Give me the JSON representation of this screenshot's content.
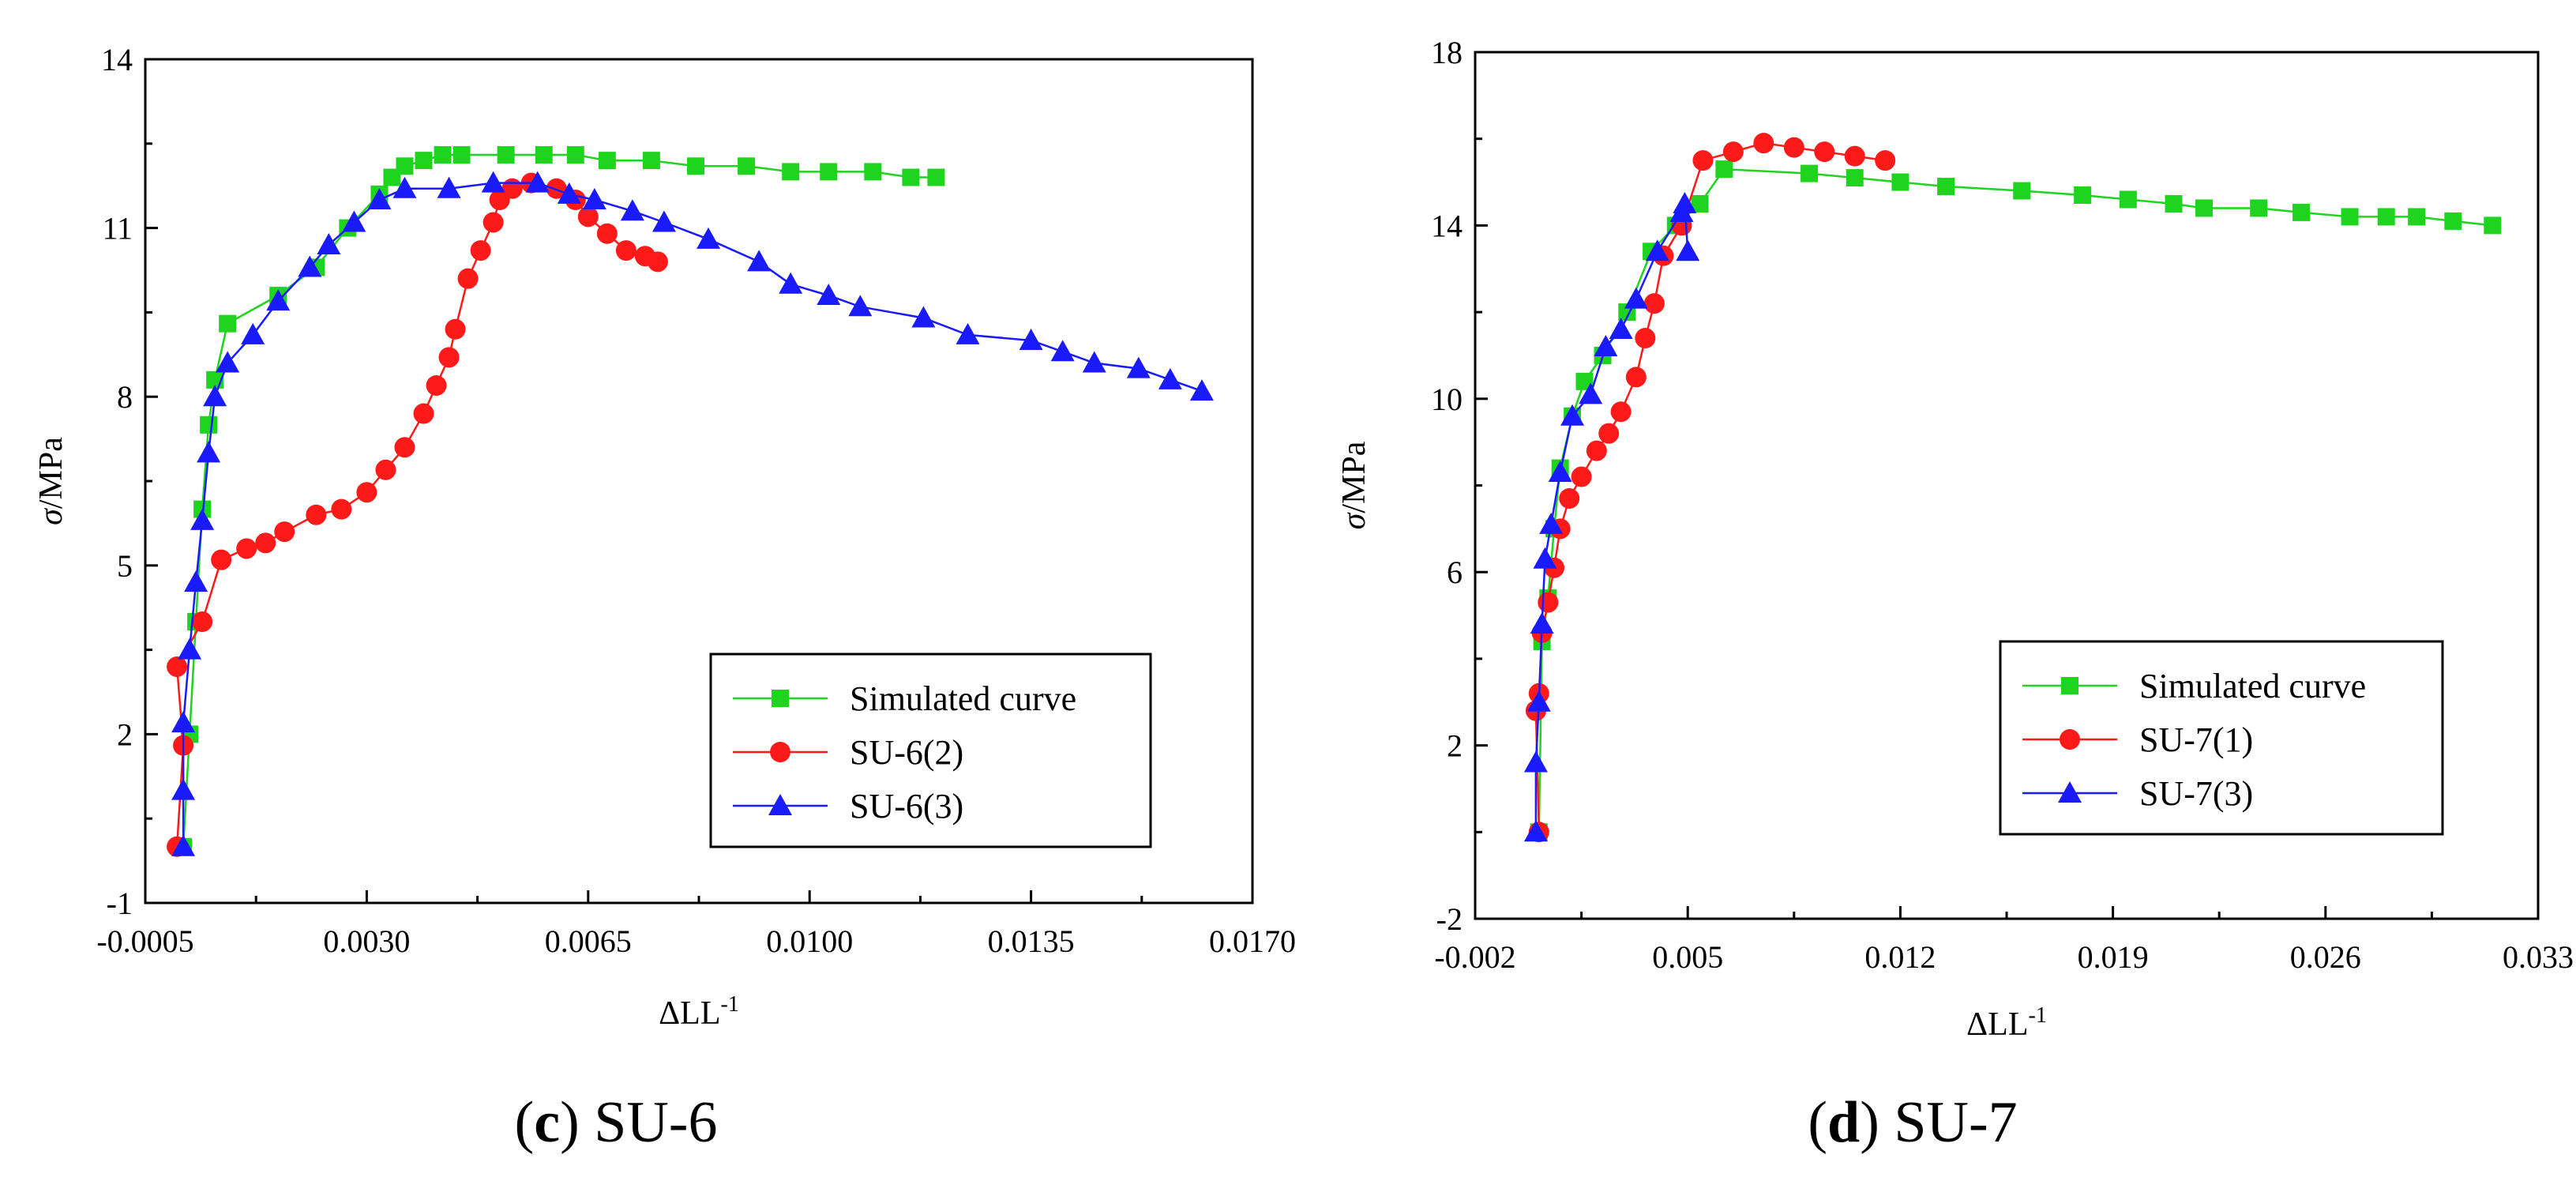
{
  "charts": [
    {
      "type": "line",
      "caption_letter": "c",
      "caption_rest": " SU-6",
      "ylabel_symbol": "σ",
      "ylabel_unit": "/MPa",
      "xlabel_main": "ΔLL",
      "xlabel_sup": "-1",
      "x_range": [
        -0.0005,
        0.017
      ],
      "y_range": [
        -1,
        14
      ],
      "x_ticks": [
        -0.0005,
        0.003,
        0.0065,
        0.01,
        0.0135,
        0.017
      ],
      "x_tick_labels": [
        "-0.0005",
        "0.0030",
        "0.0065",
        "0.0100",
        "0.0135",
        "0.0170"
      ],
      "y_ticks": [
        -1,
        2,
        5,
        8,
        11,
        14
      ],
      "y_tick_labels": [
        "-1",
        "2",
        "5",
        "8",
        "11",
        "14"
      ],
      "legend": [
        "Simulated curve",
        "SU-6(2)",
        "SU-6(3)"
      ],
      "series": [
        {
          "name": "Simulated curve",
          "color": "#1ed41e",
          "marker": "square",
          "x": [
            0.0001,
            0.0002,
            0.0003,
            0.0004,
            0.0005,
            0.0006,
            0.0008,
            0.0016,
            0.0022,
            0.0027,
            0.0032,
            0.0034,
            0.0036,
            0.0039,
            0.0042,
            0.0045,
            0.0052,
            0.0058,
            0.0063,
            0.0068,
            0.0075,
            0.0082,
            0.009,
            0.0097,
            0.0103,
            0.011,
            0.0116,
            0.012
          ],
          "y": [
            0.0,
            2.0,
            4.0,
            6.0,
            7.5,
            8.3,
            9.3,
            9.8,
            10.3,
            11.0,
            11.6,
            11.9,
            12.1,
            12.2,
            12.3,
            12.3,
            12.3,
            12.3,
            12.3,
            12.2,
            12.2,
            12.1,
            12.1,
            12.0,
            12.0,
            12.0,
            11.9,
            11.9
          ]
        },
        {
          "name": "SU-6(2)",
          "color": "#ff1a1a",
          "marker": "circle",
          "x": [
            0.0,
            0.0001,
            0.0,
            0.0004,
            0.0007,
            0.0011,
            0.0014,
            0.0017,
            0.0022,
            0.0026,
            0.003,
            0.0033,
            0.0036,
            0.0039,
            0.0041,
            0.0043,
            0.0044,
            0.0046,
            0.0048,
            0.005,
            0.0051,
            0.0053,
            0.0056,
            0.006,
            0.0063,
            0.0065,
            0.0068,
            0.0071,
            0.0074,
            0.0076
          ],
          "y": [
            0.0,
            1.8,
            3.2,
            4.0,
            5.1,
            5.3,
            5.4,
            5.6,
            5.9,
            6.0,
            6.3,
            6.7,
            7.1,
            7.7,
            8.2,
            8.7,
            9.2,
            10.1,
            10.6,
            11.1,
            11.5,
            11.7,
            11.8,
            11.7,
            11.5,
            11.2,
            10.9,
            10.6,
            10.5,
            10.4
          ],
          "x_override_note": ""
        },
        {
          "name": "SU-6(3)",
          "color": "#1a1aff",
          "marker": "triangle",
          "x": [
            0.0001,
            0.0001,
            0.0001,
            0.0002,
            0.0003,
            0.0004,
            0.0005,
            0.0006,
            0.0008,
            0.0012,
            0.0016,
            0.0021,
            0.0024,
            0.0028,
            0.0032,
            0.0036,
            0.0043,
            0.005,
            0.0057,
            0.0062,
            0.0066,
            0.0072,
            0.0077,
            0.0084,
            0.0092,
            0.0097,
            0.0103,
            0.0108,
            0.0118,
            0.0125,
            0.0135,
            0.014,
            0.0145,
            0.0152,
            0.0157,
            0.0162
          ],
          "y": [
            0.0,
            1.0,
            2.2,
            3.5,
            4.7,
            5.8,
            7.0,
            8.0,
            8.6,
            9.1,
            9.7,
            10.3,
            10.7,
            11.1,
            11.5,
            11.7,
            11.7,
            11.8,
            11.8,
            11.6,
            11.5,
            11.3,
            11.1,
            10.8,
            10.4,
            10.0,
            9.8,
            9.6,
            9.4,
            9.1,
            9.0,
            8.8,
            8.6,
            8.5,
            8.3,
            8.1
          ]
        }
      ]
    },
    {
      "type": "line",
      "caption_letter": "d",
      "caption_rest": " SU-7",
      "ylabel_symbol": "σ",
      "ylabel_unit": "/MPa",
      "xlabel_main": "ΔLL",
      "xlabel_sup": "-1",
      "x_range": [
        -0.002,
        0.033
      ],
      "y_range": [
        -2,
        18
      ],
      "x_ticks": [
        -0.002,
        0.005,
        0.012,
        0.019,
        0.026,
        0.033
      ],
      "x_tick_labels": [
        "-0.002",
        "0.005",
        "0.012",
        "0.019",
        "0.026",
        "0.033"
      ],
      "y_ticks": [
        -2,
        2,
        6,
        10,
        14,
        18
      ],
      "y_tick_labels": [
        "-2",
        "2",
        "6",
        "10",
        "14",
        "18"
      ],
      "legend": [
        "Simulated curve",
        "SU-7(1)",
        "SU-7(3)"
      ],
      "series": [
        {
          "name": "Simulated curve",
          "color": "#1ed41e",
          "marker": "square",
          "x": [
            0.0001,
            0.0002,
            0.0004,
            0.0006,
            0.0008,
            0.0012,
            0.0016,
            0.0022,
            0.003,
            0.0038,
            0.0046,
            0.0054,
            0.0062,
            0.009,
            0.0105,
            0.012,
            0.0135,
            0.016,
            0.018,
            0.0195,
            0.021,
            0.022,
            0.0238,
            0.0252,
            0.0268,
            0.028,
            0.029,
            0.0302,
            0.0315
          ],
          "y": [
            0.0,
            4.4,
            5.4,
            7.0,
            8.4,
            9.6,
            10.4,
            11.0,
            12.0,
            13.4,
            14.0,
            14.5,
            15.3,
            15.2,
            15.1,
            15.0,
            14.9,
            14.8,
            14.7,
            14.6,
            14.5,
            14.4,
            14.4,
            14.3,
            14.2,
            14.2,
            14.2,
            14.1,
            14.0
          ]
        },
        {
          "name": "SU-7(1)",
          "color": "#ff1a1a",
          "marker": "circle",
          "x": [
            0.0001,
            0.0,
            0.0001,
            0.0002,
            0.0004,
            0.0006,
            0.0008,
            0.0011,
            0.0015,
            0.002,
            0.0024,
            0.0028,
            0.0033,
            0.0036,
            0.0039,
            0.0042,
            0.0048,
            0.0055,
            0.0065,
            0.0075,
            0.0085,
            0.0095,
            0.0105,
            0.0115
          ],
          "y": [
            0.0,
            2.8,
            3.2,
            4.6,
            5.3,
            6.1,
            7.0,
            7.7,
            8.2,
            8.8,
            9.2,
            9.7,
            10.5,
            11.4,
            12.2,
            13.3,
            14.0,
            15.5,
            15.7,
            15.9,
            15.8,
            15.7,
            15.6,
            15.5
          ]
        },
        {
          "name": "SU-7(3)",
          "color": "#1a1aff",
          "marker": "triangle",
          "x": [
            0.0,
            0.0,
            0.0001,
            0.0002,
            0.0003,
            0.0005,
            0.0008,
            0.0012,
            0.0018,
            0.0023,
            0.0028,
            0.0033,
            0.004,
            0.0048,
            0.0049,
            0.005
          ],
          "y": [
            0.0,
            1.6,
            3.0,
            4.8,
            6.3,
            7.1,
            8.3,
            9.6,
            10.1,
            11.2,
            11.6,
            12.3,
            13.4,
            14.3,
            14.5,
            13.4
          ]
        }
      ]
    }
  ]
}
